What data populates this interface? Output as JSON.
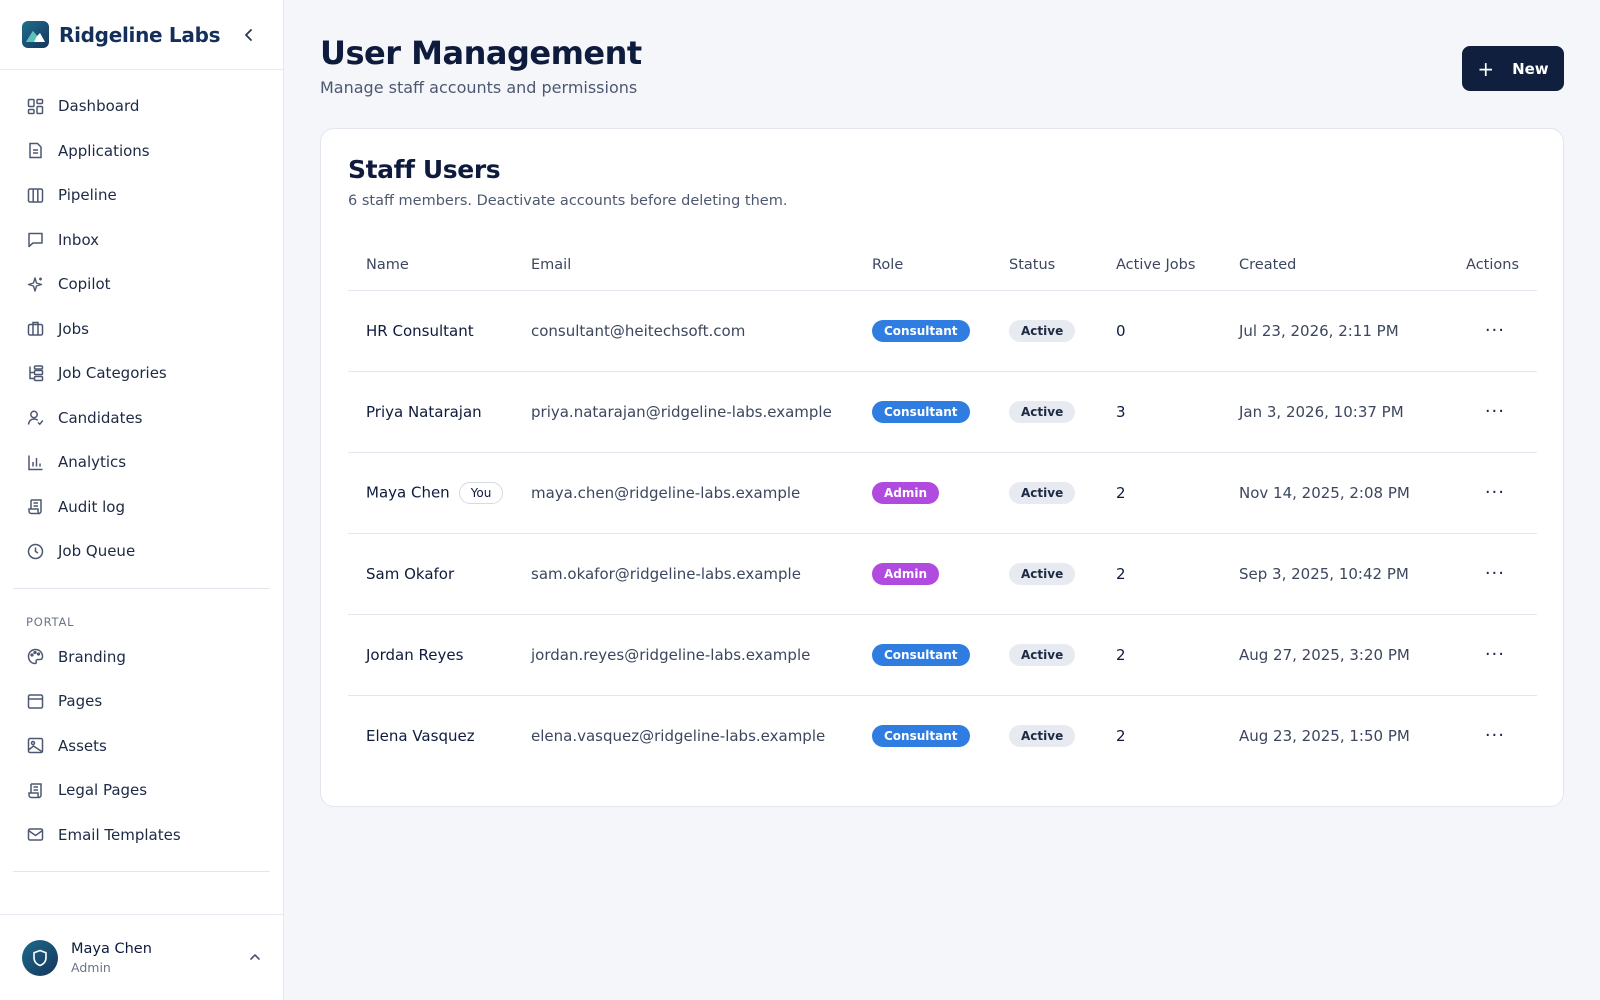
{
  "brand": {
    "name": "Ridgeline Labs"
  },
  "nav": {
    "main": [
      {
        "label": "Dashboard",
        "icon": "grid-icon"
      },
      {
        "label": "Applications",
        "icon": "file-icon"
      },
      {
        "label": "Pipeline",
        "icon": "columns-icon"
      },
      {
        "label": "Inbox",
        "icon": "message-icon"
      },
      {
        "label": "Copilot",
        "icon": "sparkles-icon"
      },
      {
        "label": "Jobs",
        "icon": "briefcase-icon"
      },
      {
        "label": "Job Categories",
        "icon": "hierarchy-icon"
      },
      {
        "label": "Candidates",
        "icon": "user-check-icon"
      },
      {
        "label": "Analytics",
        "icon": "bar-chart-icon"
      },
      {
        "label": "Audit log",
        "icon": "scroll-icon"
      },
      {
        "label": "Job Queue",
        "icon": "clock-icon"
      }
    ],
    "portal_label": "PORTAL",
    "portal": [
      {
        "label": "Branding",
        "icon": "palette-icon"
      },
      {
        "label": "Pages",
        "icon": "window-icon"
      },
      {
        "label": "Assets",
        "icon": "image-icon"
      },
      {
        "label": "Legal Pages",
        "icon": "scroll-icon"
      },
      {
        "label": "Email Templates",
        "icon": "mail-icon"
      }
    ]
  },
  "current_user": {
    "name": "Maya Chen",
    "role": "Admin"
  },
  "header": {
    "title": "User Management",
    "subtitle": "Manage staff accounts and permissions",
    "new_button": "New"
  },
  "card": {
    "title": "Staff Users",
    "description": "6 staff members. Deactivate accounts before deleting them.",
    "columns": [
      "Name",
      "Email",
      "Role",
      "Status",
      "Active Jobs",
      "Created",
      "Actions"
    ],
    "rows": [
      {
        "name": "HR Consultant",
        "you": "",
        "email": "consultant@heitechsoft.com",
        "role": "Consultant",
        "status": "Active",
        "jobs": "0",
        "created": "Jul 23, 2026, 2:11 PM"
      },
      {
        "name": "Priya Natarajan",
        "you": "",
        "email": "priya.natarajan@ridgeline-labs.example",
        "role": "Consultant",
        "status": "Active",
        "jobs": "3",
        "created": "Jan 3, 2026, 10:37 PM"
      },
      {
        "name": "Maya Chen",
        "you": "You",
        "email": "maya.chen@ridgeline-labs.example",
        "role": "Admin",
        "status": "Active",
        "jobs": "2",
        "created": "Nov 14, 2025, 2:08 PM"
      },
      {
        "name": "Sam Okafor",
        "you": "",
        "email": "sam.okafor@ridgeline-labs.example",
        "role": "Admin",
        "status": "Active",
        "jobs": "2",
        "created": "Sep 3, 2025, 10:42 PM"
      },
      {
        "name": "Jordan Reyes",
        "you": "",
        "email": "jordan.reyes@ridgeline-labs.example",
        "role": "Consultant",
        "status": "Active",
        "jobs": "2",
        "created": "Aug 27, 2025, 3:20 PM"
      },
      {
        "name": "Elena Vasquez",
        "you": "",
        "email": "elena.vasquez@ridgeline-labs.example",
        "role": "Consultant",
        "status": "Active",
        "jobs": "2",
        "created": "Aug 23, 2025, 1:50 PM"
      }
    ],
    "actions_glyph": "···"
  },
  "colors": {
    "consultant_badge": "#2f7de1",
    "admin_badge": "#b14be0",
    "primary_button": "#0f1f3d"
  }
}
